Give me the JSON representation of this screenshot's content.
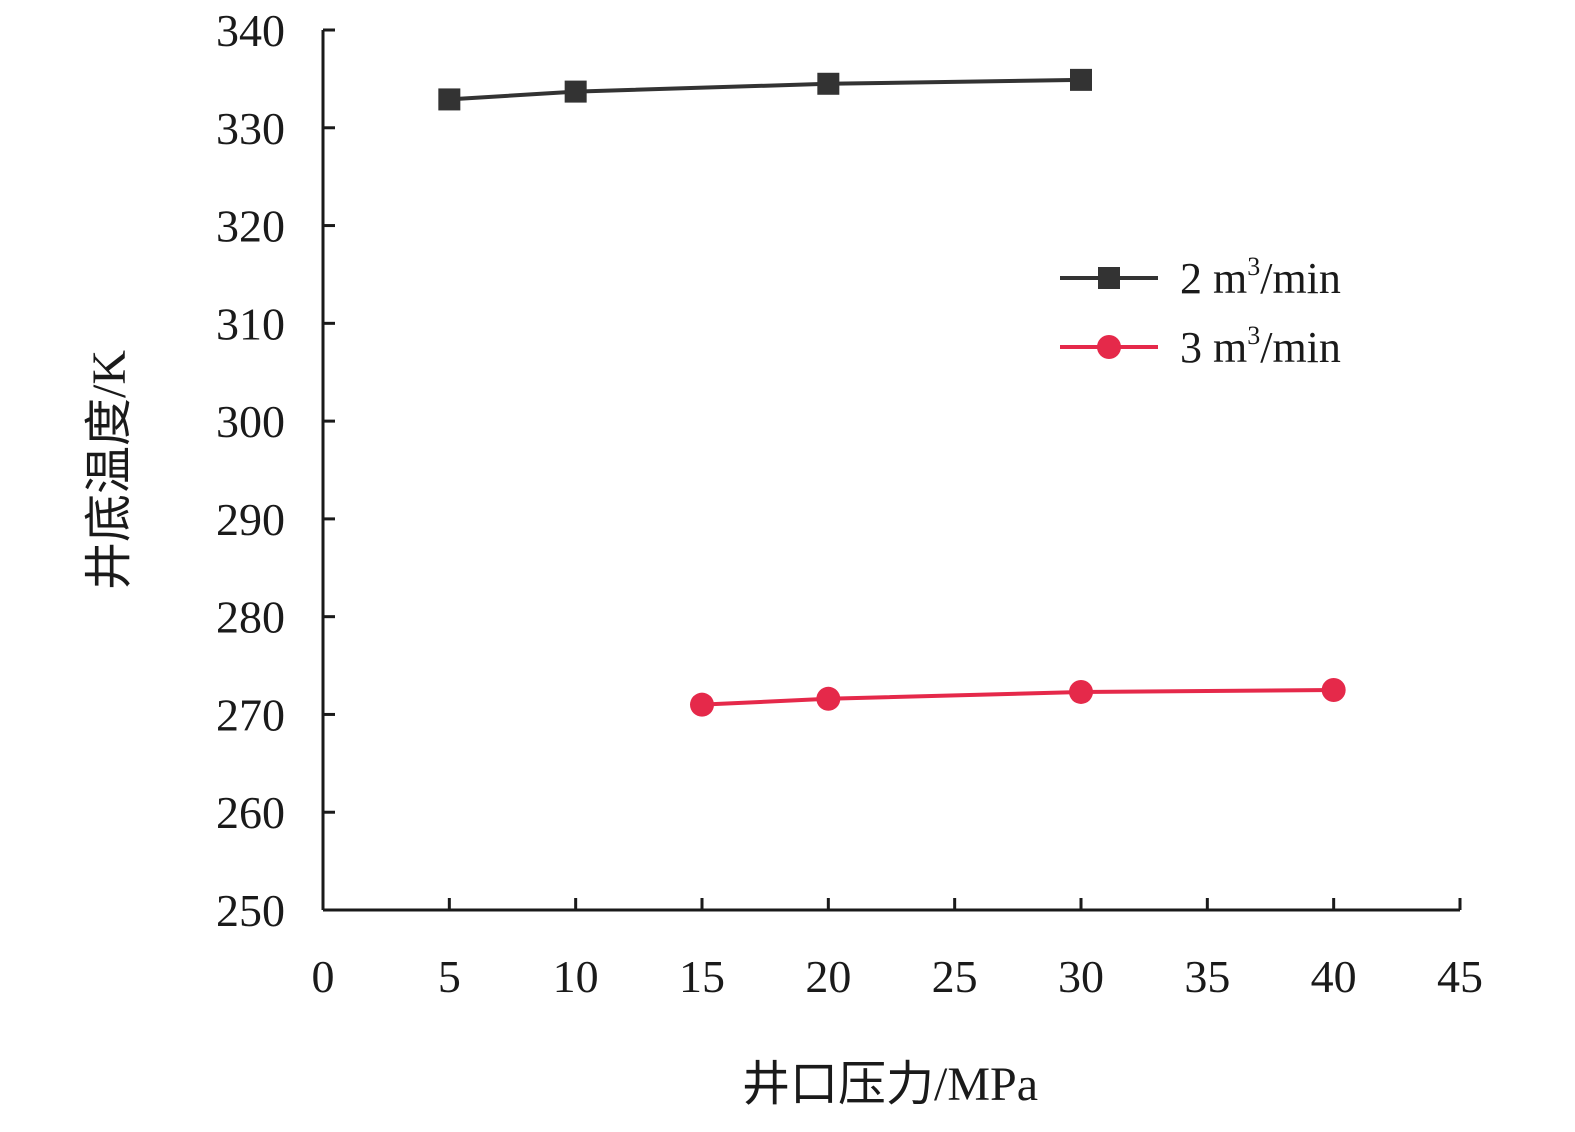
{
  "chart_data": {
    "type": "line",
    "title": "",
    "xlabel": "井口压力/MPa",
    "ylabel": "井底温度/K",
    "xlim": [
      0,
      45
    ],
    "ylim": [
      250,
      340
    ],
    "x_ticks": [
      0,
      5,
      10,
      15,
      20,
      25,
      30,
      35,
      40,
      45
    ],
    "y_ticks": [
      250,
      260,
      270,
      280,
      290,
      300,
      310,
      320,
      330,
      340
    ],
    "grid": false,
    "legend_position": "top-right",
    "series": [
      {
        "name": "2 m³/min",
        "name_base": "2 m",
        "name_sup": "3",
        "name_tail": "/min",
        "color": "#333333",
        "marker": "square",
        "x": [
          5,
          10,
          20,
          30
        ],
        "y": [
          332.9,
          333.7,
          334.5,
          334.9
        ]
      },
      {
        "name": "3 m³/min",
        "name_base": "3 m",
        "name_sup": "3",
        "name_tail": "/min",
        "color": "#e5294a",
        "marker": "circle",
        "x": [
          15,
          20,
          30,
          40
        ],
        "y": [
          271.0,
          271.6,
          272.3,
          272.5
        ]
      }
    ]
  }
}
